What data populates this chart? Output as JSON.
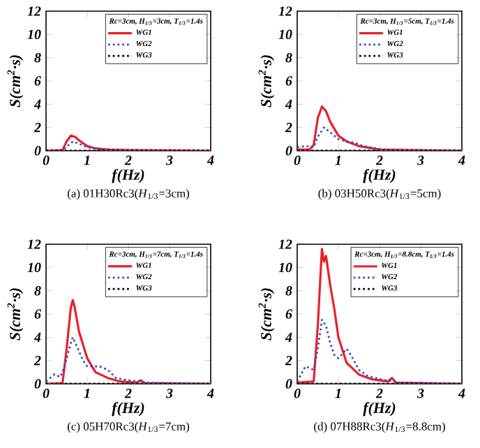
{
  "chart_data": [
    {
      "type": "line",
      "title": "(a) 01H30Rc3(*H*$_{1/3}$=3cm)",
      "xlabel": "f(Hz)",
      "ylabel": "S(cm$^{2}$·s)",
      "legend_title": "Rc=3cm, H$_{1/3}$=3cm, T$_{1/3}$=1.4s",
      "legend": "top right",
      "xlim": [
        0,
        4
      ],
      "ylim": [
        0,
        12
      ],
      "xticks": [
        0,
        1,
        2,
        3,
        4
      ],
      "yticks": [
        0,
        2,
        4,
        6,
        8,
        10,
        12
      ],
      "series": [
        {
          "name": "WG1",
          "color": "#e8202a",
          "line_style": "solid",
          "x": [
            0,
            0.4,
            0.5,
            0.6,
            0.7,
            0.8,
            1.0,
            1.2,
            1.5,
            2,
            4
          ],
          "values": [
            0,
            0.05,
            0.8,
            1.3,
            1.2,
            0.9,
            0.4,
            0.2,
            0.1,
            0.05,
            0
          ]
        },
        {
          "name": "WG2",
          "color": "#3a4fc0",
          "line_style": "dotted",
          "x": [
            0,
            0.4,
            0.55,
            0.65,
            0.8,
            1.0,
            1.3,
            2,
            4
          ],
          "values": [
            0,
            0,
            0.5,
            0.8,
            0.6,
            0.3,
            0.15,
            0.05,
            0
          ]
        },
        {
          "name": "WG3",
          "color": "#000000",
          "line_style": "dotted",
          "x": [
            0,
            4
          ],
          "values": [
            0,
            0
          ]
        }
      ]
    },
    {
      "type": "line",
      "title": "(b) 03H50Rc3(*H*$_{1/3}$=5cm)",
      "xlabel": "f(Hz)",
      "ylabel": "S(cm$^{2}$·s)",
      "legend_title": "Rc=3cm, H$_{1/3}$=5cm, T$_{1/3}$=1.4s",
      "legend": "top right",
      "xlim": [
        0,
        4
      ],
      "ylim": [
        0,
        12
      ],
      "xticks": [
        0,
        1,
        2,
        3,
        4
      ],
      "yticks": [
        0,
        2,
        4,
        6,
        8,
        10,
        12
      ],
      "series": [
        {
          "name": "WG1",
          "color": "#e8202a",
          "line_style": "solid",
          "x": [
            0,
            0.3,
            0.4,
            0.5,
            0.6,
            0.7,
            0.8,
            1.0,
            1.2,
            1.5,
            2,
            4
          ],
          "values": [
            0.1,
            0.1,
            0.5,
            2.8,
            3.8,
            3.4,
            2.5,
            1.3,
            0.8,
            0.4,
            0.1,
            0
          ]
        },
        {
          "name": "WG2",
          "color": "#3a4fc0",
          "line_style": "dotted",
          "x": [
            0,
            0.2,
            0.4,
            0.5,
            0.65,
            0.8,
            1.0,
            1.2,
            1.4,
            1.6,
            2,
            2.5,
            4
          ],
          "values": [
            0.3,
            0.4,
            0.3,
            1.2,
            2.0,
            1.6,
            1.0,
            0.8,
            0.7,
            0.4,
            0.15,
            0.05,
            0
          ]
        },
        {
          "name": "WG3",
          "color": "#000000",
          "line_style": "dotted",
          "x": [
            0,
            4
          ],
          "values": [
            0,
            0
          ]
        }
      ]
    },
    {
      "type": "line",
      "title": "(c) 05H70Rc3(*H*$_{1/3}$=7cm)",
      "xlabel": "f(Hz)",
      "ylabel": "S(cm$^{2}$·s)",
      "legend_title": "Rc=3cm, H$_{1/3}$=7cm, T$_{1/3}$=1.4s",
      "legend": "top right",
      "xlim": [
        0,
        4
      ],
      "ylim": [
        0,
        12
      ],
      "xticks": [
        0,
        1,
        2,
        3,
        4
      ],
      "yticks": [
        0,
        2,
        4,
        6,
        8,
        10,
        12
      ],
      "series": [
        {
          "name": "WG1",
          "color": "#e8202a",
          "line_style": "solid",
          "x": [
            0,
            0.4,
            0.5,
            0.6,
            0.65,
            0.7,
            0.8,
            1.0,
            1.2,
            1.5,
            1.8,
            2.2,
            2.3,
            2.4,
            4
          ],
          "values": [
            0,
            0.05,
            3,
            6.5,
            7.2,
            6.5,
            4.5,
            2.2,
            1.0,
            0.5,
            0.2,
            0.1,
            0.3,
            0.05,
            0
          ]
        },
        {
          "name": "WG2",
          "color": "#3a4fc0",
          "line_style": "dotted",
          "x": [
            0,
            0.2,
            0.35,
            0.45,
            0.6,
            0.65,
            0.75,
            0.9,
            1.0,
            1.3,
            1.5,
            1.7,
            2.0,
            2.5,
            4
          ],
          "values": [
            0.2,
            0.8,
            0.6,
            1.5,
            3.5,
            4.0,
            3.2,
            2.0,
            1.5,
            1.5,
            1.2,
            0.5,
            0.3,
            0.1,
            0
          ]
        },
        {
          "name": "WG3",
          "color": "#000000",
          "line_style": "dotted",
          "x": [
            0,
            4
          ],
          "values": [
            0,
            0
          ]
        }
      ]
    },
    {
      "type": "line",
      "title": "(d) 07H88Rc3(*H*$_{1/3}$=8.8cm)",
      "xlabel": "f(Hz)",
      "ylabel": "S(cm$^{2}$·s)",
      "legend_title": "Rc=3cm, H$_{1/3}$=8.8cm, T$_{1/3}$=1.4s",
      "legend": "top right",
      "xlim": [
        0,
        4
      ],
      "ylim": [
        0,
        12
      ],
      "xticks": [
        0,
        1,
        2,
        3,
        4
      ],
      "yticks": [
        0,
        2,
        4,
        6,
        8,
        10,
        12
      ],
      "series": [
        {
          "name": "WG1",
          "color": "#e8202a",
          "line_style": "solid",
          "x": [
            0,
            0.4,
            0.5,
            0.6,
            0.65,
            0.7,
            0.8,
            0.9,
            1.0,
            1.2,
            1.5,
            1.8,
            2.2,
            2.3,
            2.4,
            4
          ],
          "values": [
            0.1,
            0.2,
            5,
            11.6,
            10.5,
            11,
            8.5,
            6.5,
            4.0,
            1.8,
            0.8,
            0.4,
            0.2,
            0.5,
            0.1,
            0
          ]
        },
        {
          "name": "WG2",
          "color": "#3a4fc0",
          "line_style": "dotted",
          "x": [
            0,
            0.2,
            0.4,
            0.5,
            0.6,
            0.7,
            0.8,
            0.9,
            1.0,
            1.1,
            1.2,
            1.3,
            1.5,
            1.7,
            2.0,
            2.5,
            4
          ],
          "values": [
            0.2,
            1.5,
            1.2,
            3,
            5.5,
            5,
            3.5,
            2.5,
            2.2,
            2.6,
            3.0,
            2.5,
            1.2,
            0.7,
            0.4,
            0.1,
            0
          ]
        },
        {
          "name": "WG3",
          "color": "#000000",
          "line_style": "dotted",
          "x": [
            0,
            4
          ],
          "values": [
            0,
            0
          ]
        }
      ]
    }
  ]
}
